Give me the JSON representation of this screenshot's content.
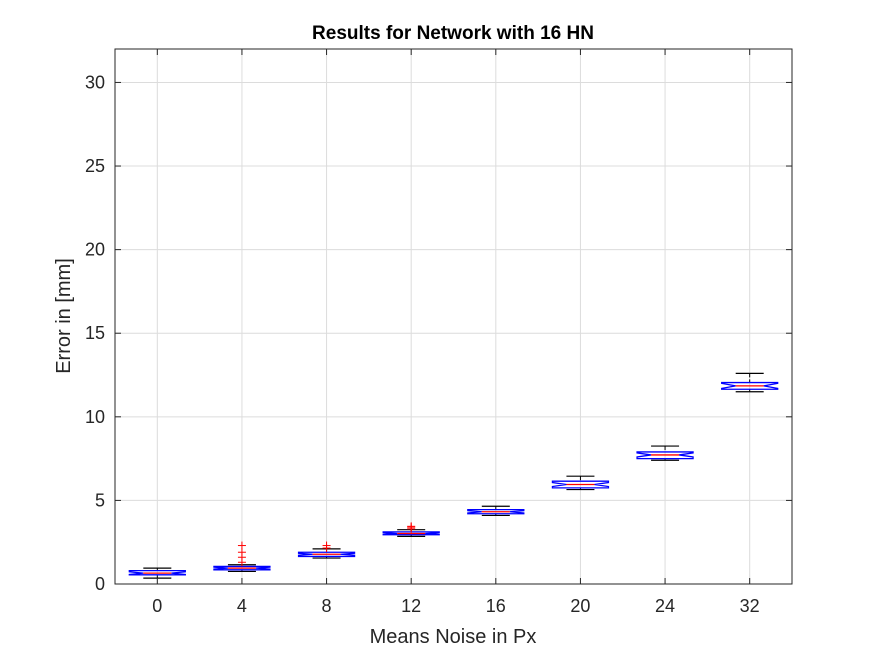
{
  "chart_data": {
    "type": "box",
    "title": "Results for Network with 16 HN",
    "xlabel": "Means Noise in Px",
    "ylabel": "Error in [mm]",
    "categories": [
      "0",
      "4",
      "8",
      "12",
      "16",
      "20",
      "24",
      "32"
    ],
    "ylim": [
      0,
      32
    ],
    "yticks": [
      0,
      5,
      10,
      15,
      20,
      25,
      30
    ],
    "grid": true,
    "notched": true,
    "colors": {
      "box": "#0000ff",
      "median": "#ff0000",
      "whisker": "#000000",
      "outlier": "#ff0000",
      "grid": "#dcdcdc",
      "axis": "#262626"
    },
    "boxes": [
      {
        "category": "0",
        "whisker_low": 0.35,
        "q1": 0.55,
        "median": 0.65,
        "q3": 0.8,
        "whisker_high": 0.95,
        "notch": 0.08,
        "outliers": []
      },
      {
        "category": "4",
        "whisker_low": 0.75,
        "q1": 0.85,
        "median": 0.95,
        "q3": 1.05,
        "whisker_high": 1.15,
        "notch": 0.06,
        "outliers": [
          1.3,
          1.6,
          1.9,
          2.3
        ]
      },
      {
        "category": "8",
        "whisker_low": 1.55,
        "q1": 1.65,
        "median": 1.78,
        "q3": 1.9,
        "whisker_high": 2.1,
        "notch": 0.06,
        "outliers": [
          2.15,
          2.3
        ]
      },
      {
        "category": "12",
        "whisker_low": 2.85,
        "q1": 2.95,
        "median": 3.02,
        "q3": 3.12,
        "whisker_high": 3.25,
        "notch": 0.05,
        "outliers": [
          3.3,
          3.4,
          3.45
        ]
      },
      {
        "category": "16",
        "whisker_low": 4.1,
        "q1": 4.2,
        "median": 4.32,
        "q3": 4.45,
        "whisker_high": 4.65,
        "notch": 0.07,
        "outliers": []
      },
      {
        "category": "20",
        "whisker_low": 5.65,
        "q1": 5.75,
        "median": 5.95,
        "q3": 6.15,
        "whisker_high": 6.45,
        "notch": 0.12,
        "outliers": []
      },
      {
        "category": "24",
        "whisker_low": 7.4,
        "q1": 7.5,
        "median": 7.72,
        "q3": 7.9,
        "whisker_high": 8.25,
        "notch": 0.12,
        "outliers": []
      },
      {
        "category": "32",
        "whisker_low": 11.5,
        "q1": 11.65,
        "median": 11.85,
        "q3": 12.05,
        "whisker_high": 12.6,
        "notch": 0.15,
        "outliers": []
      }
    ]
  }
}
